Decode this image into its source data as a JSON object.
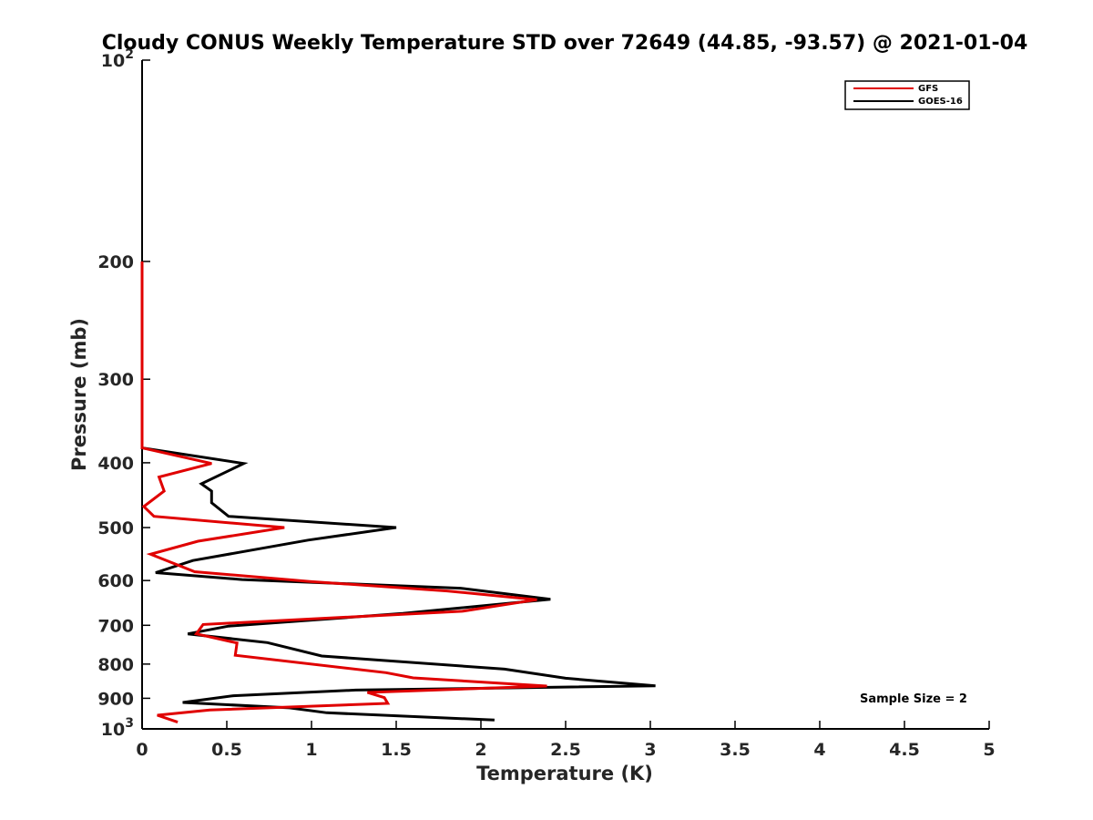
{
  "chart_data": {
    "type": "line",
    "title": "Cloudy CONUS Weekly Temperature STD over 72649 (44.85, -93.57) @ 2021-01-04",
    "xlabel": "Temperature (K)",
    "ylabel": "Pressure (mb)",
    "xlim": [
      0,
      5
    ],
    "ylim": [
      100,
      1000
    ],
    "y_scale": "log",
    "y_reversed": true,
    "grid": false,
    "legend_position": "top-right",
    "x_ticks": [
      0,
      0.5,
      1,
      1.5,
      2,
      2.5,
      3,
      3.5,
      4,
      4.5,
      5
    ],
    "x_tick_labels": [
      "0",
      "0.5",
      "1",
      "1.5",
      "2",
      "2.5",
      "3",
      "3.5",
      "4",
      "4.5",
      "5"
    ],
    "y_ticks": [
      {
        "value": 100,
        "base": "10",
        "exp": "2"
      },
      {
        "value": 200,
        "label": "200"
      },
      {
        "value": 300,
        "label": "300"
      },
      {
        "value": 400,
        "label": "400"
      },
      {
        "value": 500,
        "label": "500"
      },
      {
        "value": 600,
        "label": "600"
      },
      {
        "value": 700,
        "label": "700"
      },
      {
        "value": 800,
        "label": "800"
      },
      {
        "value": 900,
        "label": "900"
      },
      {
        "value": 1000,
        "base": "10",
        "exp": "3"
      }
    ],
    "annotation": "Sample Size = 2",
    "series": [
      {
        "name": "GFS",
        "color": "#e00000",
        "points": [
          [
            0,
            200
          ],
          [
            0,
            380
          ],
          [
            0.41,
            401
          ],
          [
            0.1,
            420
          ],
          [
            0.13,
            441
          ],
          [
            0.01,
            465
          ],
          [
            0.07,
            481
          ],
          [
            0.84,
            500
          ],
          [
            0.33,
            524
          ],
          [
            0.05,
            548
          ],
          [
            0.31,
            582
          ],
          [
            0.99,
            602
          ],
          [
            1.8,
            622
          ],
          [
            2.33,
            641
          ],
          [
            1.89,
            667
          ],
          [
            0.36,
            698
          ],
          [
            0.32,
            721
          ],
          [
            0.56,
            744
          ],
          [
            0.55,
            776
          ],
          [
            1.44,
            824
          ],
          [
            1.6,
            839
          ],
          [
            2.39,
            863
          ],
          [
            1.33,
            882
          ],
          [
            1.43,
            898
          ],
          [
            1.45,
            916
          ],
          [
            0.4,
            937
          ],
          [
            0.09,
            954
          ],
          [
            0.21,
            977
          ]
        ]
      },
      {
        "name": "GOES-16",
        "color": "#000000",
        "points": [
          [
            0,
            200
          ],
          [
            0,
            380
          ],
          [
            0.6,
            401
          ],
          [
            0.35,
            430
          ],
          [
            0.41,
            441
          ],
          [
            0.41,
            459
          ],
          [
            0.51,
            481
          ],
          [
            1.5,
            500
          ],
          [
            0.98,
            522
          ],
          [
            0.3,
            560
          ],
          [
            0.08,
            584
          ],
          [
            0.59,
            598
          ],
          [
            1.88,
            616
          ],
          [
            2.41,
            640
          ],
          [
            1.54,
            672
          ],
          [
            0.51,
            702
          ],
          [
            0.27,
            721
          ],
          [
            0.74,
            743
          ],
          [
            1.06,
            778
          ],
          [
            2.14,
            814
          ],
          [
            2.5,
            840
          ],
          [
            3.03,
            862
          ],
          [
            1.26,
            875
          ],
          [
            0.54,
            892
          ],
          [
            0.24,
            913
          ],
          [
            0.87,
            930
          ],
          [
            1.09,
            946
          ],
          [
            2.08,
            970
          ]
        ]
      }
    ]
  }
}
